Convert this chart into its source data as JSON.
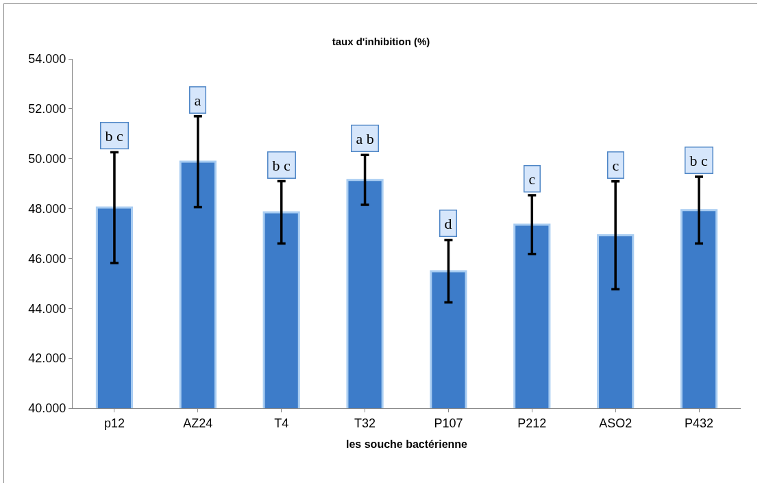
{
  "chart_data": {
    "type": "bar",
    "title": "taux d'inhibition (%)",
    "xlabel": "les souche bactérienne",
    "categories": [
      "p12",
      "AZ24",
      "T4",
      "T32",
      "P107",
      "P212",
      "ASO2",
      "P432"
    ],
    "values": [
      48.04,
      49.88,
      47.85,
      49.15,
      45.49,
      47.36,
      46.93,
      47.94
    ],
    "errors": [
      2.22,
      1.82,
      1.25,
      1.0,
      1.25,
      1.18,
      2.16,
      1.34
    ],
    "color": "#3d7cc9",
    "ylim": [
      40,
      54
    ],
    "yticks": [
      {
        "value": 40,
        "label": "40.000"
      },
      {
        "value": 42,
        "label": "42.000"
      },
      {
        "value": 44,
        "label": "44.000"
      },
      {
        "value": 46,
        "label": "46.000"
      },
      {
        "value": 48,
        "label": "48.000"
      },
      {
        "value": 50,
        "label": "50.000"
      },
      {
        "value": 52,
        "label": "52.000"
      },
      {
        "value": 54,
        "label": "54.000"
      }
    ],
    "annotations": [
      {
        "text": "b c",
        "x": "p12",
        "y": 50.26
      },
      {
        "text": "a",
        "x": "AZ24",
        "y": 51.7
      },
      {
        "text": "b c",
        "x": "T4",
        "y": 49.1
      },
      {
        "text": "a b",
        "x": "T32",
        "y": 50.15
      },
      {
        "text": "d",
        "x": "P107",
        "y": 46.74
      },
      {
        "text": "c",
        "x": "P212",
        "y": 48.54
      },
      {
        "text": "c",
        "x": "ASO2",
        "y": 49.09
      },
      {
        "text": "b c",
        "x": "P432",
        "y": 49.28
      }
    ]
  }
}
